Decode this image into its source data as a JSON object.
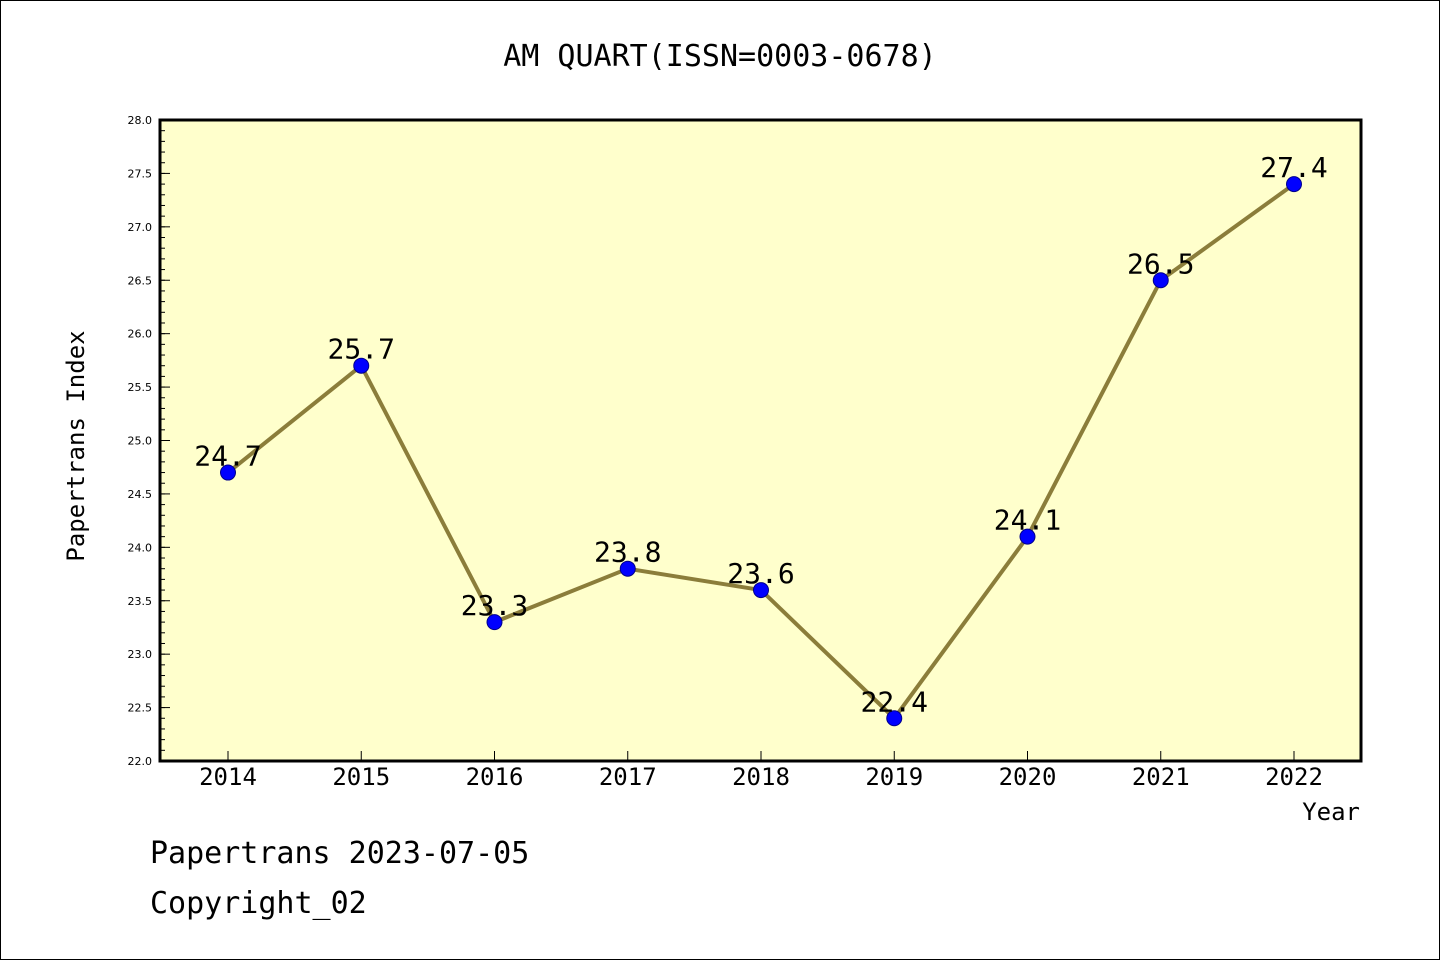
{
  "chart_data": {
    "type": "line",
    "title": "AM QUART(ISSN=0003-0678)",
    "xlabel": "Year",
    "ylabel": "Papertrans Index",
    "categories": [
      "2014",
      "2015",
      "2016",
      "2017",
      "2018",
      "2019",
      "2020",
      "2021",
      "2022"
    ],
    "values": [
      24.7,
      25.7,
      23.3,
      23.8,
      23.6,
      22.4,
      24.1,
      26.5,
      27.4
    ],
    "data_labels": [
      "24.7",
      "25.7",
      "23.3",
      "23.8",
      "23.6",
      "22.4",
      "24.1",
      "26.5",
      "27.4"
    ],
    "ylim": [
      22.0,
      28.0
    ],
    "yticks": [
      "22.0",
      "22.5",
      "23.0",
      "23.5",
      "24.0",
      "24.5",
      "25.0",
      "25.5",
      "26.0",
      "26.5",
      "27.0",
      "27.5",
      "28.0"
    ],
    "grid": false,
    "legend": "none",
    "colors": {
      "plot_background": "#ffffcc",
      "line": "#8b7d3a",
      "marker": "#0000ff"
    }
  },
  "footer": {
    "date_line": "Papertrans 2023-07-05",
    "copyright": "Copyright_02"
  }
}
